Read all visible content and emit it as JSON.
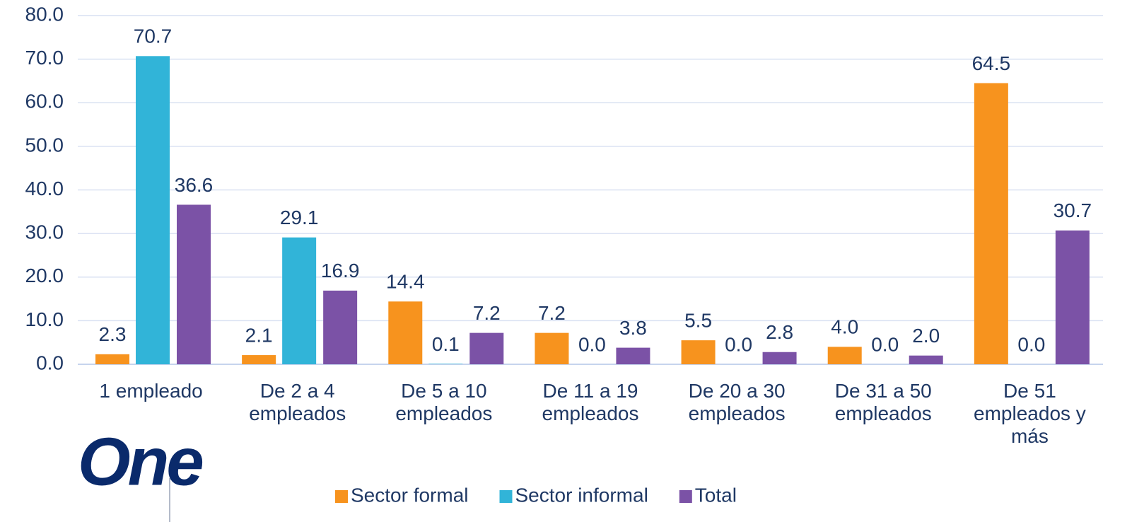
{
  "chart_data": {
    "type": "bar",
    "categories": [
      "1 empleado",
      "De 2 a 4 empleados",
      "De 5 a 10 empleados",
      "De 11 a 19 empleados",
      "De 20 a 30 empleados",
      "De 31 a 50 empleados",
      "De 51 empleados y más"
    ],
    "series": [
      {
        "name": "Sector formal",
        "color": "#f7931e",
        "values": [
          2.3,
          2.1,
          14.4,
          7.2,
          5.5,
          4.0,
          64.5
        ],
        "value_labels": [
          "2.3",
          "2.1",
          "14.4",
          "7.2",
          "5.5",
          "4.0",
          "64.5"
        ]
      },
      {
        "name": "Sector informal",
        "color": "#31b4d8",
        "values": [
          70.7,
          29.1,
          0.1,
          0.0,
          0.0,
          0.0,
          0.0
        ],
        "value_labels": [
          "70.7",
          "29.1",
          "0.1",
          "0.0",
          "0.0",
          "0.0",
          "0.0"
        ]
      },
      {
        "name": "Total",
        "color": "#7b52a6",
        "values": [
          36.6,
          16.9,
          7.2,
          3.8,
          2.8,
          2.0,
          30.7
        ],
        "value_labels": [
          "36.6",
          "16.9",
          "7.2",
          "3.8",
          "2.8",
          "2.0",
          "30.7"
        ]
      }
    ],
    "ylim": [
      0,
      80
    ],
    "yticks": [
      {
        "value": 0,
        "label": "0.0"
      },
      {
        "value": 10,
        "label": "10.0"
      },
      {
        "value": 20,
        "label": "20.0"
      },
      {
        "value": 30,
        "label": "30.0"
      },
      {
        "value": 40,
        "label": "40.0"
      },
      {
        "value": 50,
        "label": "50.0"
      },
      {
        "value": 60,
        "label": "60.0"
      },
      {
        "value": 70,
        "label": "70.0"
      },
      {
        "value": 80,
        "label": "80.0"
      }
    ],
    "grid": true,
    "legend": "bottom",
    "logo": "One"
  }
}
